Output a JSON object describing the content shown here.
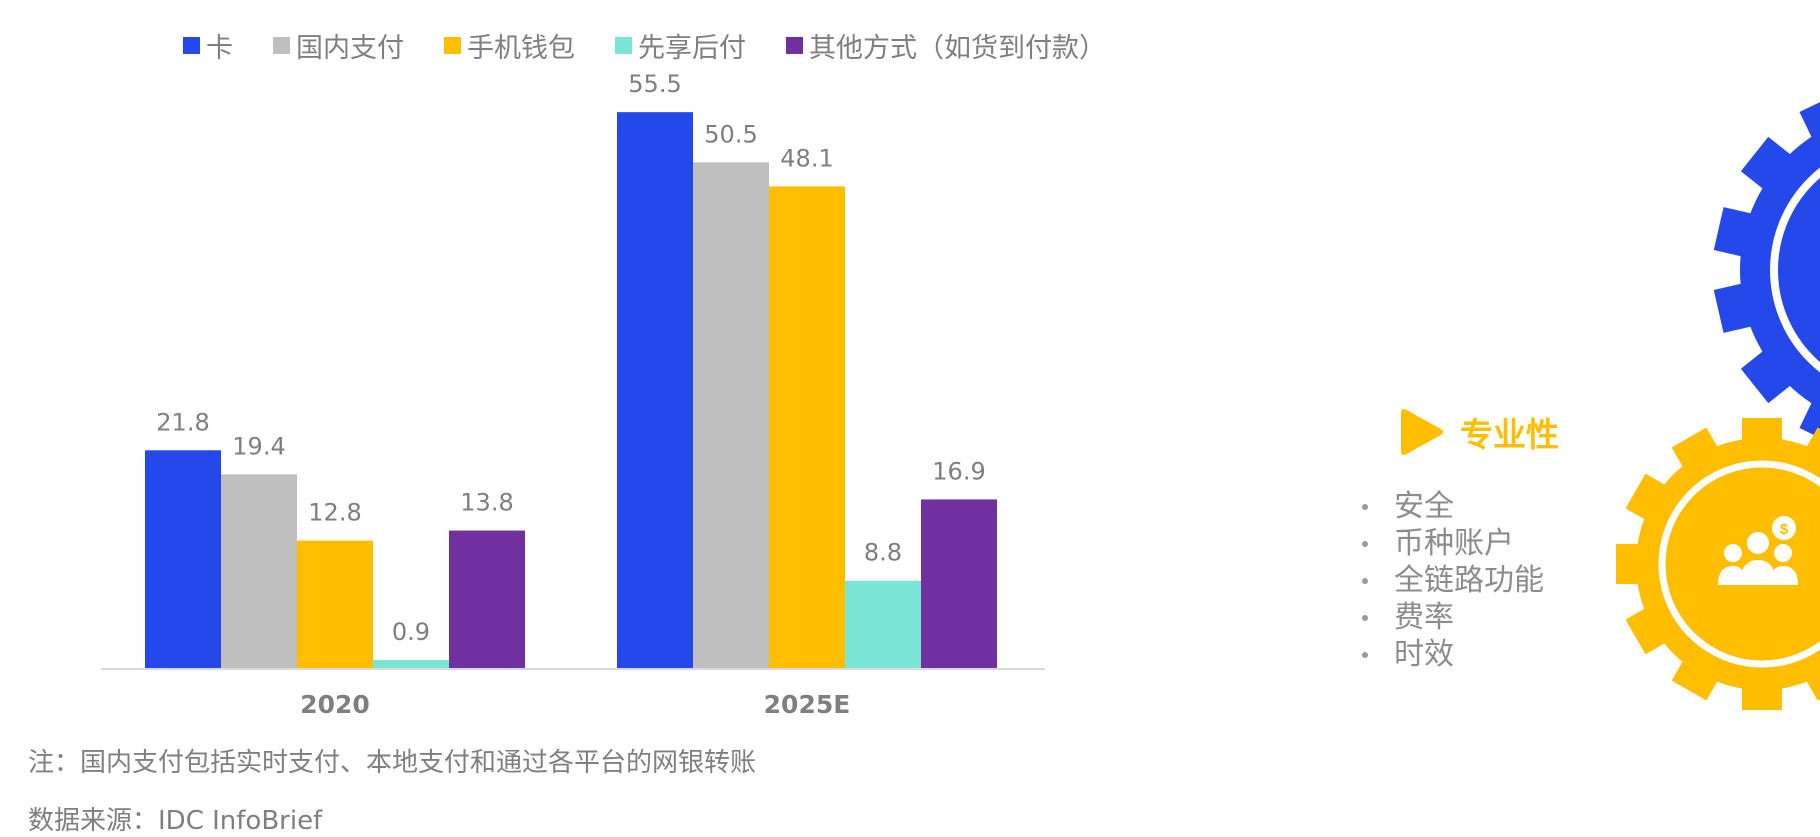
{
  "chart_data": {
    "type": "bar",
    "categories": [
      "2020",
      "2025E"
    ],
    "series": [
      {
        "name": "卡",
        "color": "#2448ea",
        "values": [
          21.8,
          55.5
        ]
      },
      {
        "name": "国内支付",
        "color": "#bfbfbf",
        "values": [
          19.4,
          50.5
        ]
      },
      {
        "name": "手机钱包",
        "color": "#ffbe00",
        "values": [
          12.8,
          48.1
        ]
      },
      {
        "name": "先享后付",
        "color": "#7be5d6",
        "values": [
          0.9,
          8.8
        ]
      },
      {
        "name": "其他方式（如货到付款）",
        "color": "#7030a0",
        "values": [
          13.8,
          16.9
        ]
      }
    ],
    "ylim": [
      0,
      60
    ],
    "grid": false,
    "legend_position": "top",
    "data_labels": true
  },
  "note": "注：国内支付包括实时支付、本地支付和通过各平台的网银转账",
  "source": "数据来源：IDC InfoBrief",
  "side_panel": {
    "title": "专业性",
    "title_color": "#ffbe00",
    "items": [
      "安全",
      "币种账户",
      "全链路功能",
      "费率",
      "时效"
    ],
    "icons": [
      "play-triangle-icon",
      "blue-gear-icon",
      "yellow-gear-icon",
      "people-dollar-icon"
    ]
  }
}
